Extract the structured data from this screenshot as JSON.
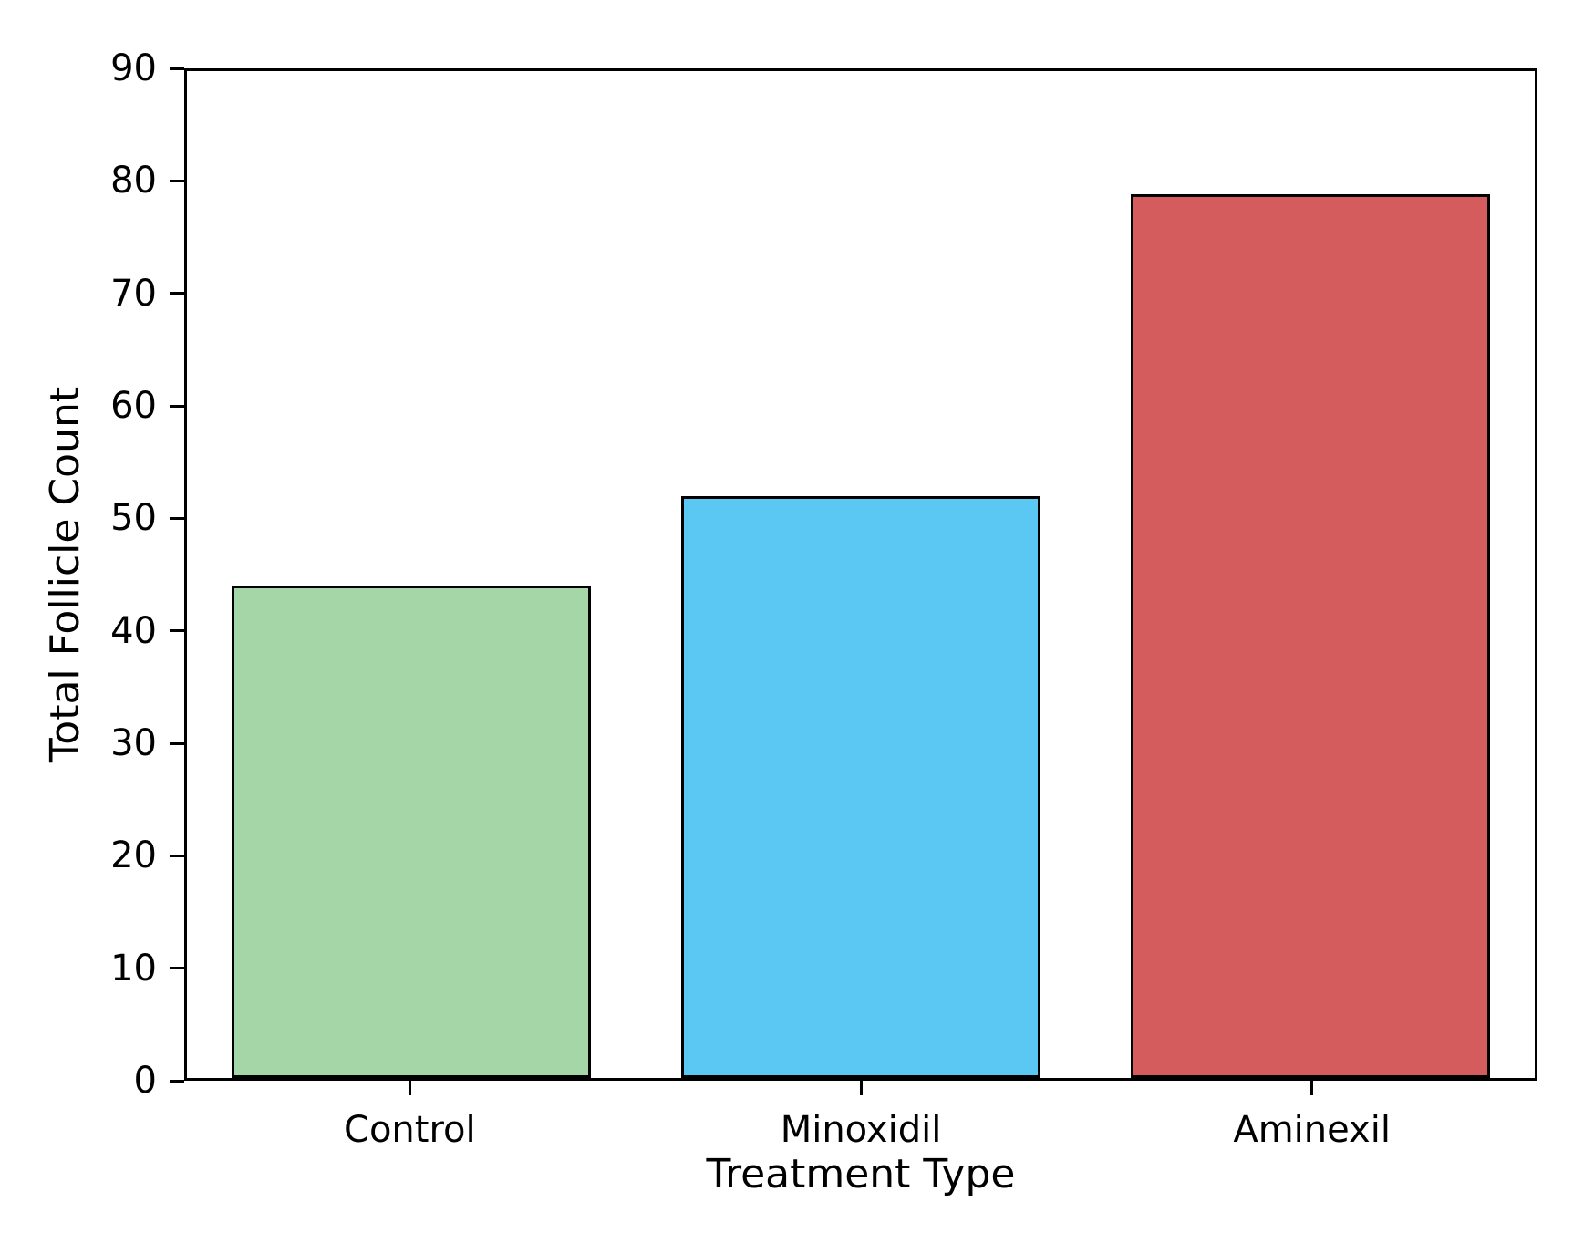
{
  "chart_data": {
    "type": "bar",
    "title": "",
    "xlabel": "Treatment Type",
    "ylabel": "Total Follicle Count",
    "categories": [
      "Control",
      "Minoxidil",
      "Aminexil"
    ],
    "values": [
      44,
      52,
      79
    ],
    "bar_colors": [
      "#A5D6A7",
      "#5BC7F3",
      "#D45C5C"
    ],
    "bar_edge_color": "#000000",
    "ylim": [
      0,
      90
    ],
    "yticks": [
      0,
      10,
      20,
      30,
      40,
      50,
      60,
      70,
      80,
      90
    ],
    "grid": false,
    "legend": null,
    "bar_width_fraction": 0.8,
    "background_color": "#FFFFFF",
    "text_color": "#000000"
  }
}
